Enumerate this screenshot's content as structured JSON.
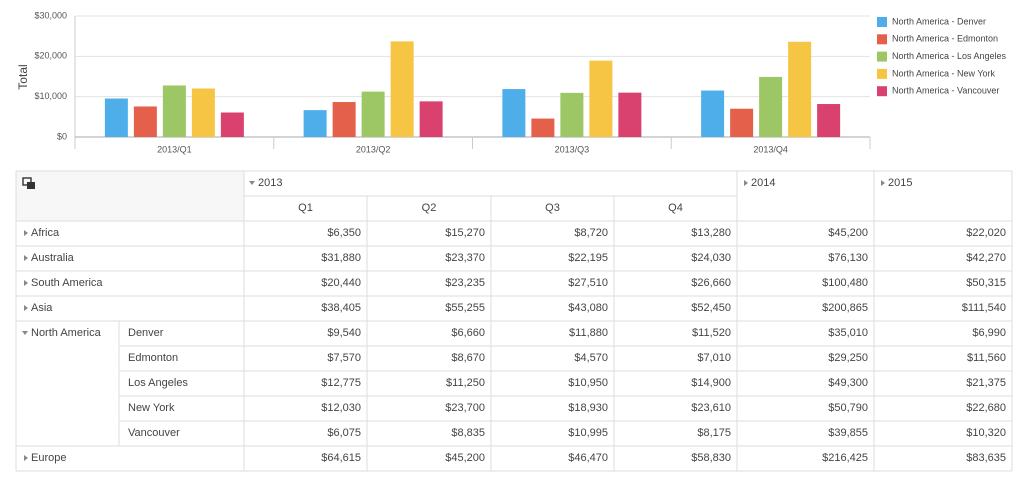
{
  "chart_data": {
    "type": "bar",
    "y_label": "Total",
    "categories": [
      "2013/Q1",
      "2013/Q2",
      "2013/Q3",
      "2013/Q4"
    ],
    "series": [
      {
        "name": "North America - Denver",
        "color": "#4daee9",
        "values": [
          9540,
          6660,
          11880,
          11520
        ]
      },
      {
        "name": "North America - Edmonton",
        "color": "#e5604b",
        "values": [
          7570,
          8670,
          4570,
          7010
        ]
      },
      {
        "name": "North America - Los Angeles",
        "color": "#9dc665",
        "values": [
          12775,
          11250,
          10950,
          14900
        ]
      },
      {
        "name": "North America - New York",
        "color": "#f7c544",
        "values": [
          12030,
          23700,
          18930,
          23610
        ]
      },
      {
        "name": "North America - Vancouver",
        "color": "#d9426e",
        "values": [
          6075,
          8835,
          10995,
          8175
        ]
      }
    ],
    "ylim": [
      0,
      30000
    ],
    "yticks": [
      {
        "value": 0,
        "label": "$0"
      },
      {
        "value": 10000,
        "label": "$10,000"
      },
      {
        "value": 20000,
        "label": "$20,000"
      },
      {
        "value": 30000,
        "label": "$30,000"
      }
    ],
    "grid": true,
    "legend": "right"
  },
  "table": {
    "years": [
      "2013",
      "2014",
      "2015"
    ],
    "quarters": [
      "Q1",
      "Q2",
      "Q3",
      "Q4"
    ],
    "rows": [
      {
        "label": "Africa",
        "cells": [
          "$6,350",
          "$15,270",
          "$8,720",
          "$13,280",
          "$45,200",
          "$22,020"
        ]
      },
      {
        "label": "Australia",
        "cells": [
          "$31,880",
          "$23,370",
          "$22,195",
          "$24,030",
          "$76,130",
          "$42,270"
        ]
      },
      {
        "label": "South America",
        "cells": [
          "$20,440",
          "$23,235",
          "$27,510",
          "$26,660",
          "$100,480",
          "$50,315"
        ]
      },
      {
        "label": "Asia",
        "cells": [
          "$38,405",
          "$55,255",
          "$43,080",
          "$52,450",
          "$200,865",
          "$111,540"
        ]
      },
      {
        "label": "North America",
        "children": [
          {
            "label": "Denver",
            "cells": [
              "$9,540",
              "$6,660",
              "$11,880",
              "$11,520",
              "$35,010",
              "$6,990"
            ]
          },
          {
            "label": "Edmonton",
            "cells": [
              "$7,570",
              "$8,670",
              "$4,570",
              "$7,010",
              "$29,250",
              "$11,560"
            ]
          },
          {
            "label": "Los Angeles",
            "cells": [
              "$12,775",
              "$11,250",
              "$10,950",
              "$14,900",
              "$49,300",
              "$21,375"
            ]
          },
          {
            "label": "New York",
            "cells": [
              "$12,030",
              "$23,700",
              "$18,930",
              "$23,610",
              "$50,790",
              "$22,680"
            ]
          },
          {
            "label": "Vancouver",
            "cells": [
              "$6,075",
              "$8,835",
              "$10,995",
              "$8,175",
              "$39,855",
              "$10,320"
            ]
          }
        ]
      },
      {
        "label": "Europe",
        "cells": [
          "$64,615",
          "$45,200",
          "$46,470",
          "$58,830",
          "$216,425",
          "$83,635"
        ]
      }
    ]
  }
}
